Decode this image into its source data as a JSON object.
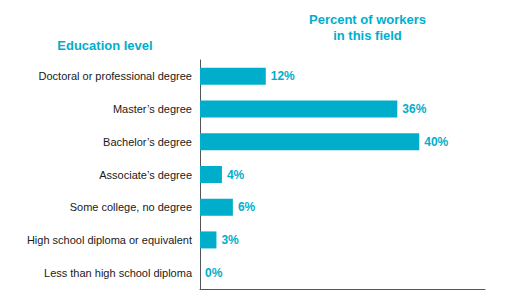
{
  "chart_data": {
    "type": "bar",
    "orientation": "horizontal",
    "ylabel": "Education level",
    "xlabel": "Percent of workers\nin this field",
    "categories": [
      "Less than high school diploma",
      "High school diploma or equivalent",
      "Some college, no degree",
      "Associate’s degree",
      "Bachelor’s degree",
      "Master’s degree",
      "Doctoral or professional degree"
    ],
    "values": [
      0,
      3,
      6,
      4,
      40,
      36,
      12
    ],
    "value_labels": [
      "0%",
      "3%",
      "6%",
      "4%",
      "40%",
      "36%",
      "12%"
    ],
    "data_labels": true,
    "color": "#00AECC",
    "xlim": [
      0,
      52
    ],
    "tick_labels": "y",
    "grid": false
  }
}
